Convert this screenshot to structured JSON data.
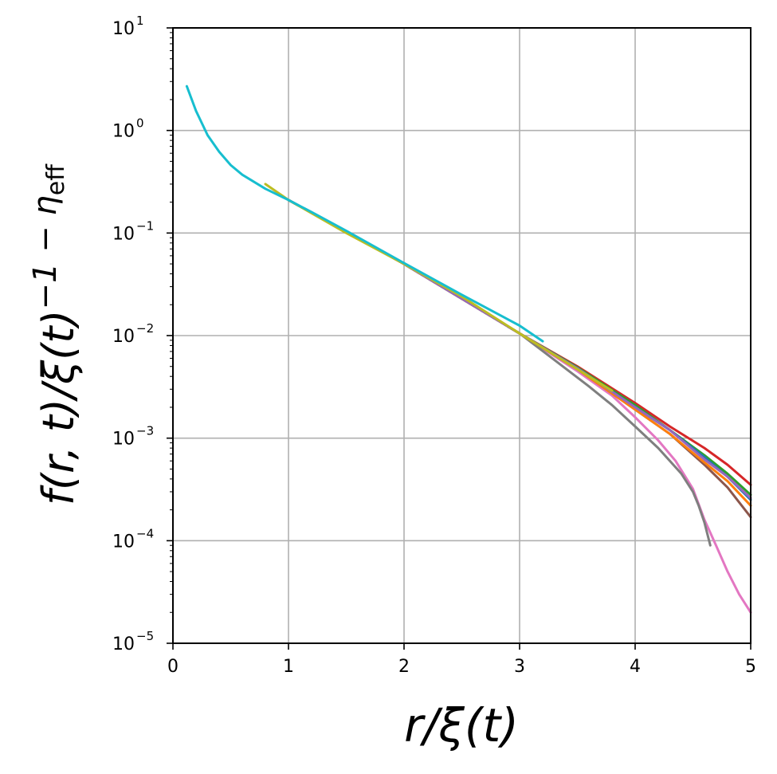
{
  "chart_data": {
    "type": "line",
    "title": "",
    "xlabel": "r/ξ(t)",
    "ylabel": "f(r, t)/ξ(t)^{−1 − η_eff}",
    "ylabel_parts": {
      "main": "f(r, t)/ξ(t)",
      "exponent": "−1 − η",
      "exponent_subscript": "eff"
    },
    "x_scale": "linear",
    "y_scale": "log",
    "xlim": [
      0,
      5
    ],
    "ylim": [
      1e-05,
      10
    ],
    "x_ticks": [
      {
        "value": 0,
        "label": "0"
      },
      {
        "value": 1,
        "label": "1"
      },
      {
        "value": 2,
        "label": "2"
      },
      {
        "value": 3,
        "label": "3"
      },
      {
        "value": 4,
        "label": "4"
      },
      {
        "value": 5,
        "label": "5"
      }
    ],
    "y_ticks": [
      {
        "value": 10,
        "base": "10",
        "exp": "1"
      },
      {
        "value": 1,
        "base": "10",
        "exp": "0"
      },
      {
        "value": 0.1,
        "base": "10",
        "exp": "−1"
      },
      {
        "value": 0.01,
        "base": "10",
        "exp": "−2"
      },
      {
        "value": 0.001,
        "base": "10",
        "exp": "−3"
      },
      {
        "value": 0.0001,
        "base": "10",
        "exp": "−4"
      },
      {
        "value": 1e-05,
        "base": "10",
        "exp": "−5"
      }
    ],
    "grid": true,
    "legend": "none",
    "series": [
      {
        "color": "#e377c2",
        "x": [
          1.0,
          2.0,
          3.0,
          3.5,
          3.8,
          4.0,
          4.2,
          4.35,
          4.5,
          4.6,
          4.7,
          4.8,
          4.9,
          5.0
        ],
        "y": [
          0.21,
          0.05,
          0.0105,
          0.0045,
          0.0026,
          0.0016,
          0.00095,
          0.0006,
          0.00032,
          0.00016,
          9e-05,
          5e-05,
          3e-05,
          2e-05
        ]
      },
      {
        "color": "#7f7f7f",
        "x": [
          1.0,
          2.0,
          3.0,
          3.3,
          3.6,
          3.8,
          4.0,
          4.2,
          4.4,
          4.5,
          4.55,
          4.6,
          4.65
        ],
        "y": [
          0.21,
          0.05,
          0.0105,
          0.0058,
          0.0032,
          0.0021,
          0.0013,
          0.0008,
          0.00045,
          0.0003,
          0.00022,
          0.00015,
          9e-05
        ]
      },
      {
        "color": "#8c564b",
        "x": [
          1.0,
          2.0,
          3.0,
          3.5,
          4.0,
          4.3,
          4.6,
          4.8,
          5.0
        ],
        "y": [
          0.21,
          0.05,
          0.0105,
          0.0047,
          0.0019,
          0.0011,
          0.00055,
          0.00033,
          0.00017
        ]
      },
      {
        "color": "#d62728",
        "x": [
          1.0,
          2.0,
          3.0,
          3.5,
          4.0,
          4.3,
          4.6,
          4.8,
          5.0
        ],
        "y": [
          0.21,
          0.05,
          0.0105,
          0.005,
          0.0022,
          0.0013,
          0.0008,
          0.00055,
          0.00035
        ]
      },
      {
        "color": "#2ca02c",
        "x": [
          1.0,
          2.0,
          3.0,
          3.5,
          4.0,
          4.3,
          4.6,
          4.8,
          5.0
        ],
        "y": [
          0.21,
          0.05,
          0.0105,
          0.0049,
          0.0021,
          0.0012,
          0.00068,
          0.00045,
          0.00028
        ]
      },
      {
        "color": "#1f77b4",
        "x": [
          1.0,
          2.0,
          3.0,
          3.5,
          4.0,
          4.3,
          4.6,
          4.8,
          5.0
        ],
        "y": [
          0.21,
          0.05,
          0.0105,
          0.0048,
          0.002,
          0.0012,
          0.00065,
          0.00042,
          0.00025
        ]
      },
      {
        "color": "#ff7f0e",
        "x": [
          1.0,
          2.0,
          3.0,
          3.5,
          4.0,
          4.3,
          4.6,
          4.8,
          5.0
        ],
        "y": [
          0.21,
          0.05,
          0.0105,
          0.0047,
          0.0019,
          0.0011,
          0.00058,
          0.00038,
          0.00022
        ]
      },
      {
        "color": "#9467bd",
        "x": [
          1.0,
          2.0,
          3.0,
          3.5,
          4.0,
          4.3,
          4.6,
          4.8,
          5.0
        ],
        "y": [
          0.21,
          0.05,
          0.0105,
          0.0048,
          0.002,
          0.0012,
          0.00062,
          0.00042,
          0.00026
        ]
      },
      {
        "color": "#bcbd22",
        "x": [
          0.8,
          1.0,
          1.5,
          2.0,
          2.5,
          3.0,
          3.3,
          3.5,
          3.7,
          3.8
        ],
        "y": [
          0.3,
          0.21,
          0.1,
          0.05,
          0.024,
          0.0105,
          0.0065,
          0.0047,
          0.0034,
          0.0029
        ]
      },
      {
        "color": "#17becf",
        "x": [
          0.12,
          0.2,
          0.3,
          0.4,
          0.5,
          0.6,
          0.8,
          1.0,
          1.2,
          1.5,
          2.0,
          2.5,
          3.0,
          3.2
        ],
        "y": [
          2.7,
          1.55,
          0.9,
          0.62,
          0.46,
          0.37,
          0.27,
          0.21,
          0.16,
          0.105,
          0.051,
          0.025,
          0.0125,
          0.0088
        ]
      }
    ]
  }
}
